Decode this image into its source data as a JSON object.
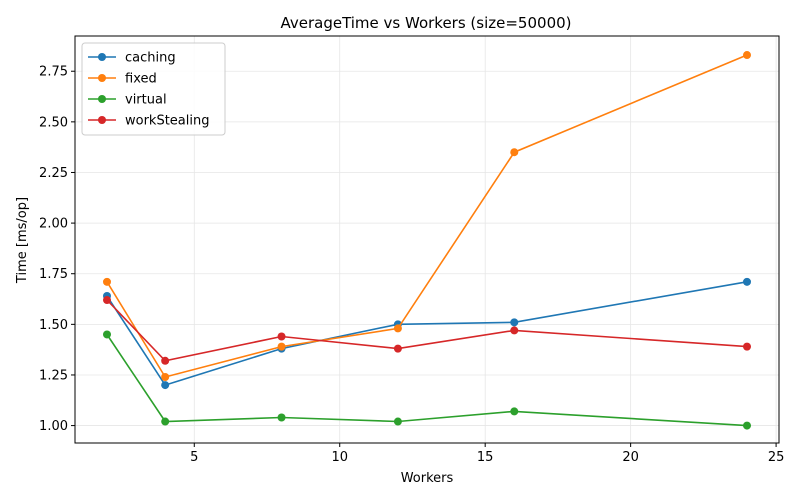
{
  "chart_data": {
    "type": "line",
    "title": "AverageTime vs Workers (size=50000)",
    "xlabel": "Workers",
    "ylabel": "Time [ms/op]",
    "x": [
      2,
      4,
      8,
      12,
      16,
      24
    ],
    "xlim": [
      0.9,
      25.1
    ],
    "ylim": [
      0.914,
      2.924
    ],
    "xticks": [
      5,
      10,
      15,
      20,
      25
    ],
    "yticks": [
      1.0,
      1.25,
      1.5,
      1.75,
      2.0,
      2.25,
      2.5,
      2.75
    ],
    "xtick_labels": [
      "5",
      "10",
      "15",
      "20",
      "25"
    ],
    "ytick_labels": [
      "1.00",
      "1.25",
      "1.50",
      "1.75",
      "2.00",
      "2.25",
      "2.50",
      "2.75"
    ],
    "grid": true,
    "legend_position": "top-left",
    "series": [
      {
        "name": "caching",
        "color": "#1f77b4",
        "values": [
          1.64,
          1.2,
          1.38,
          1.5,
          1.51,
          1.71
        ]
      },
      {
        "name": "fixed",
        "color": "#ff7f0e",
        "values": [
          1.71,
          1.24,
          1.39,
          1.48,
          2.35,
          2.83
        ]
      },
      {
        "name": "virtual",
        "color": "#2ca02c",
        "values": [
          1.45,
          1.02,
          1.04,
          1.02,
          1.07,
          1.0
        ]
      },
      {
        "name": "workStealing",
        "color": "#d62728",
        "values": [
          1.62,
          1.32,
          1.44,
          1.38,
          1.47,
          1.39
        ]
      }
    ]
  }
}
